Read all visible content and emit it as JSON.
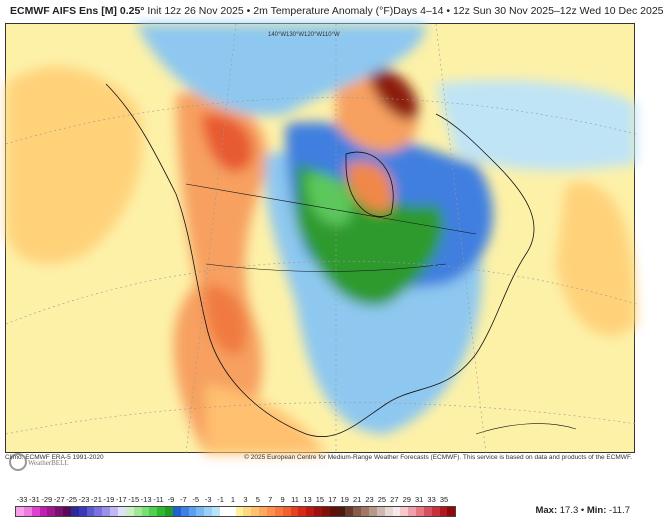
{
  "header": {
    "model": "ECMWF AIFS Ens [M] 0.25°",
    "init": "Init 12z 26 Nov 2025",
    "variable": "2m Temperature Anomaly (°F)",
    "period": "Days 4–14 • 12z Sun 30 Nov 2025–12z Wed 10 Dec 2025"
  },
  "map": {
    "meridian_labels": [
      "140°W",
      "130°W",
      "120°W",
      "110°W"
    ],
    "logo_text": "WeatherBELL",
    "colors": {
      "background": "#fdf1a8",
      "warm": "#f7a860",
      "hot": "#e8603a",
      "extreme": "#8b1a10",
      "cool": "#8ec8f0",
      "cold": "#3f7fe0",
      "colder": "#2e9a2e",
      "greenlight": "#5cc85c"
    }
  },
  "footer": {
    "climo": "Climo: ECMWF ERA-5 1991-2020",
    "copyright": "© 2025 European Centre for Medium-Range Weather Forecasts (ECMWF). This service is based on data and products of the ECMWF."
  },
  "colorbar": {
    "labels": [
      "-33",
      "-31",
      "-29",
      "-27",
      "-25",
      "-23",
      "-21",
      "-19",
      "-17",
      "-15",
      "-13",
      "-11",
      "-9",
      "-7",
      "-5",
      "-3",
      "-1",
      "1",
      "3",
      "5",
      "7",
      "9",
      "11",
      "13",
      "15",
      "17",
      "19",
      "21",
      "23",
      "25",
      "27",
      "29",
      "31",
      "33",
      "35"
    ],
    "colors": [
      "#f5a0e8",
      "#ee7ce0",
      "#e040d0",
      "#c020b0",
      "#a01890",
      "#7a1070",
      "#5a0a58",
      "#2a2a9a",
      "#3a3ab8",
      "#5a5ad0",
      "#7a70e0",
      "#9a90ea",
      "#c0b8f0",
      "#e0e0f8",
      "#c8f0c0",
      "#a0e898",
      "#78e070",
      "#50d050",
      "#30b830",
      "#20a020",
      "#2060d0",
      "#3c80e8",
      "#5aa0f0",
      "#78b8f4",
      "#98d0f8",
      "#b8e4fa",
      "#ffffff",
      "#ffffff",
      "#fff0a0",
      "#ffd880",
      "#ffc070",
      "#ffa860",
      "#ff9050",
      "#f87840",
      "#f06030",
      "#e84020",
      "#d82818",
      "#c01810",
      "#a01010",
      "#801008",
      "#601008",
      "#4a1a10",
      "#6a3a28",
      "#8a5a48",
      "#a07868",
      "#b89888",
      "#d0b8b0",
      "#e8d8d4",
      "#f8e8ec",
      "#f8c8cc",
      "#f0a0a8",
      "#e87880",
      "#d85060",
      "#c83040",
      "#b01820",
      "#900808"
    ]
  },
  "stats": {
    "max_label": "Max:",
    "max": "17.3",
    "min_label": "Min:",
    "min": "-11.7"
  }
}
